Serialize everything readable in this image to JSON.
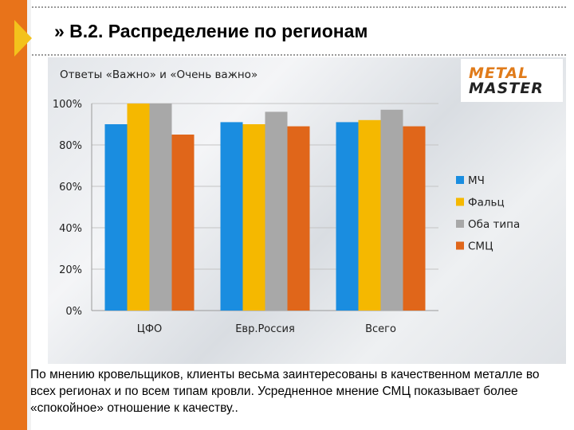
{
  "title": "» В.2. Распределение по регионам",
  "logo": {
    "line1": "METAL",
    "line2": "MASTER"
  },
  "caption": "По мнению кровельщиков, клиенты весьма заинтересованы в качественном металле во всех регионах и по всем типам кровли. Усредненное мнение СМЦ показывает более «спокойное» отношение к качеству..",
  "chart_data": {
    "type": "bar",
    "title": "Ответы «Важно» и «Очень важно»",
    "categories": [
      "ЦФО",
      "Евр.Россия",
      "Всего"
    ],
    "series": [
      {
        "name": "МЧ",
        "color": "#1a8de0",
        "values": [
          90,
          91,
          91
        ]
      },
      {
        "name": "Фальц",
        "color": "#f5b800",
        "values": [
          100,
          90,
          92
        ]
      },
      {
        "name": "Оба типа",
        "color": "#a8a8a8",
        "values": [
          100,
          96,
          97
        ]
      },
      {
        "name": "СМЦ",
        "color": "#e0661a",
        "values": [
          85,
          89,
          89
        ]
      }
    ],
    "ylim": [
      0,
      100
    ],
    "yticks": [
      "0%",
      "20%",
      "40%",
      "60%",
      "80%",
      "100%"
    ],
    "grid": true,
    "legend": "right"
  }
}
